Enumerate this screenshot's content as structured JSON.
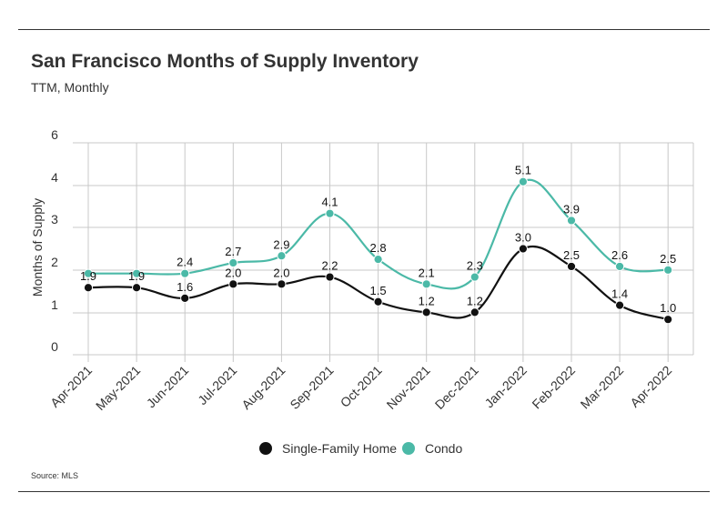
{
  "header": {
    "title": "San Francisco Months of Supply Inventory",
    "subtitle": "TTM, Monthly"
  },
  "footer": {
    "source": "Source:  MLS"
  },
  "colors": {
    "single_family": "#111111",
    "condo": "#4bb9a7",
    "grid": "#c8c8c8"
  },
  "chart_data": {
    "type": "line",
    "title": "San Francisco Months of Supply Inventory",
    "subtitle": "TTM, Monthly",
    "xlabel": "",
    "ylabel": "Months of Supply",
    "categories": [
      "Apr-2021",
      "May-2021",
      "Jun-2021",
      "Jul-2021",
      "Aug-2021",
      "Sep-2021",
      "Oct-2021",
      "Nov-2021",
      "Dec-2021",
      "Jan-2022",
      "Feb-2022",
      "Mar-2022",
      "Apr-2022"
    ],
    "yticks": [
      "0",
      "1",
      "2",
      "3",
      "4",
      "6"
    ],
    "ylim": [
      0,
      6
    ],
    "grid": true,
    "legend_position": "bottom",
    "series": [
      {
        "name": "Single-Family Home",
        "labels": [
          "1.9",
          "1.9",
          "1.6",
          "2.0",
          "2.0",
          "2.2",
          "1.5",
          "1.2",
          "1.2",
          "3.0",
          "2.5",
          "1.4",
          "1.0"
        ]
      },
      {
        "name": "Condo",
        "labels": [
          "",
          "",
          "2.4",
          "2.7",
          "2.9",
          "4.1",
          "2.8",
          "2.1",
          "2.3",
          "5.1",
          "3.9",
          "2.6",
          "2.5"
        ]
      }
    ]
  }
}
